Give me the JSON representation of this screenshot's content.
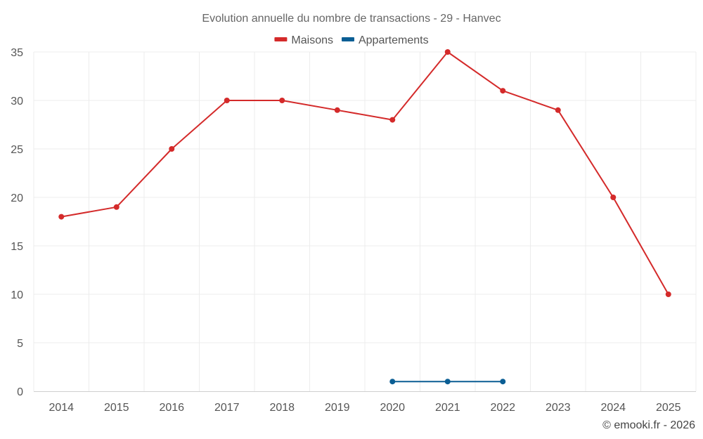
{
  "chart_data": {
    "type": "line",
    "title": "Evolution annuelle du nombre de transactions - 29 - Hanvec",
    "categories": [
      "2014",
      "2015",
      "2016",
      "2017",
      "2018",
      "2019",
      "2020",
      "2021",
      "2022",
      "2023",
      "2024",
      "2025"
    ],
    "ylim": [
      0,
      35
    ],
    "yticks": [
      0,
      5,
      10,
      15,
      20,
      25,
      30,
      35
    ],
    "grid": true,
    "legend_position": "top-center",
    "series": [
      {
        "name": "Maisons",
        "color": "#d42a2a",
        "values": [
          18,
          19,
          25,
          30,
          30,
          29,
          28,
          35,
          31,
          29,
          20,
          10
        ]
      },
      {
        "name": "Appartements",
        "color": "#0b5e94",
        "values": [
          null,
          null,
          null,
          null,
          null,
          null,
          1,
          1,
          1,
          null,
          null,
          null
        ]
      }
    ],
    "credit": "© emooki.fr - 2026"
  }
}
